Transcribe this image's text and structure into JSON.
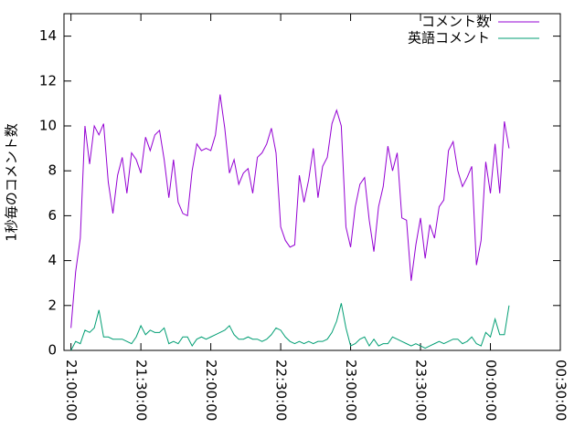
{
  "chart_data": {
    "type": "line",
    "ylabel": "1秒毎のコメント数",
    "x": [
      1260,
      1262,
      1264,
      1266,
      1268,
      1270,
      1272,
      1274,
      1276,
      1278,
      1280,
      1282,
      1284,
      1286,
      1288,
      1290,
      1292,
      1294,
      1296,
      1298,
      1300,
      1302,
      1304,
      1306,
      1308,
      1310,
      1312,
      1314,
      1316,
      1318,
      1320,
      1322,
      1324,
      1326,
      1328,
      1330,
      1332,
      1334,
      1336,
      1338,
      1340,
      1342,
      1344,
      1346,
      1348,
      1350,
      1352,
      1354,
      1356,
      1358,
      1360,
      1362,
      1364,
      1366,
      1368,
      1370,
      1372,
      1374,
      1376,
      1378,
      1380,
      1382,
      1384,
      1386,
      1388,
      1390,
      1392,
      1394,
      1396,
      1398,
      1400,
      1402,
      1404,
      1406,
      1408,
      1410,
      1412,
      1414,
      1416,
      1418,
      1420,
      1422,
      1424,
      1426,
      1428,
      1430,
      1432,
      1434,
      1436,
      1438,
      1440,
      1442,
      1444,
      1446,
      1448
    ],
    "series": [
      {
        "name": "コメント数",
        "color": "#9400d3",
        "values": [
          1.0,
          3.5,
          5.0,
          10.0,
          8.3,
          10.0,
          9.6,
          10.1,
          7.5,
          6.1,
          7.8,
          8.6,
          7.0,
          8.8,
          8.5,
          7.9,
          9.5,
          8.9,
          9.6,
          9.8,
          8.5,
          6.8,
          8.5,
          6.6,
          6.1,
          6.0,
          8.0,
          9.2,
          8.9,
          9.0,
          8.9,
          9.6,
          11.4,
          9.9,
          7.9,
          8.5,
          7.4,
          7.9,
          8.1,
          7.0,
          8.6,
          8.8,
          9.2,
          9.9,
          8.8,
          5.5,
          4.9,
          4.6,
          4.7,
          7.8,
          6.6,
          7.6,
          9.0,
          6.8,
          8.2,
          8.6,
          10.1,
          10.7,
          10.0,
          5.5,
          4.6,
          6.4,
          7.4,
          7.7,
          5.8,
          4.4,
          6.4,
          7.3,
          9.1,
          8.0,
          8.8,
          5.9,
          5.8,
          3.1,
          4.7,
          5.9,
          4.1,
          5.6,
          5.0,
          6.4,
          6.7,
          8.9,
          9.3,
          8.0,
          7.3,
          7.7,
          8.2,
          3.8,
          4.9,
          8.4,
          7.0,
          9.2,
          7.0,
          10.2,
          9.0
        ]
      },
      {
        "name": "英語コメント",
        "color": "#009e73",
        "values": [
          0.0,
          0.4,
          0.3,
          0.9,
          0.8,
          1.0,
          1.8,
          0.6,
          0.6,
          0.5,
          0.5,
          0.5,
          0.4,
          0.3,
          0.6,
          1.1,
          0.7,
          0.9,
          0.8,
          0.8,
          1.0,
          0.3,
          0.4,
          0.3,
          0.6,
          0.6,
          0.2,
          0.5,
          0.6,
          0.5,
          0.6,
          0.7,
          0.8,
          0.9,
          1.1,
          0.7,
          0.5,
          0.5,
          0.6,
          0.5,
          0.5,
          0.4,
          0.5,
          0.7,
          1.0,
          0.9,
          0.6,
          0.4,
          0.3,
          0.4,
          0.3,
          0.4,
          0.3,
          0.4,
          0.4,
          0.5,
          0.8,
          1.3,
          2.1,
          1.0,
          0.2,
          0.3,
          0.5,
          0.6,
          0.2,
          0.5,
          0.2,
          0.3,
          0.3,
          0.6,
          0.5,
          0.4,
          0.3,
          0.2,
          0.3,
          0.2,
          0.1,
          0.2,
          0.3,
          0.4,
          0.3,
          0.4,
          0.5,
          0.5,
          0.3,
          0.4,
          0.6,
          0.3,
          0.2,
          0.8,
          0.6,
          1.4,
          0.7,
          0.7,
          2.0
        ]
      }
    ],
    "xlim": [
      1257,
      1470
    ],
    "xticks": [
      {
        "value": 1260,
        "label": "21:00:00"
      },
      {
        "value": 1290,
        "label": "21:30:00"
      },
      {
        "value": 1320,
        "label": "22:00:00"
      },
      {
        "value": 1350,
        "label": "22:30:00"
      },
      {
        "value": 1380,
        "label": "23:00:00"
      },
      {
        "value": 1410,
        "label": "23:30:00"
      },
      {
        "value": 1440,
        "label": "00:00:00"
      },
      {
        "value": 1470,
        "label": "00:30:00"
      }
    ],
    "ylim": [
      0,
      15
    ],
    "yticks": [
      0,
      2,
      4,
      6,
      8,
      10,
      12,
      14
    ],
    "grid": false,
    "legend": "top-right"
  }
}
